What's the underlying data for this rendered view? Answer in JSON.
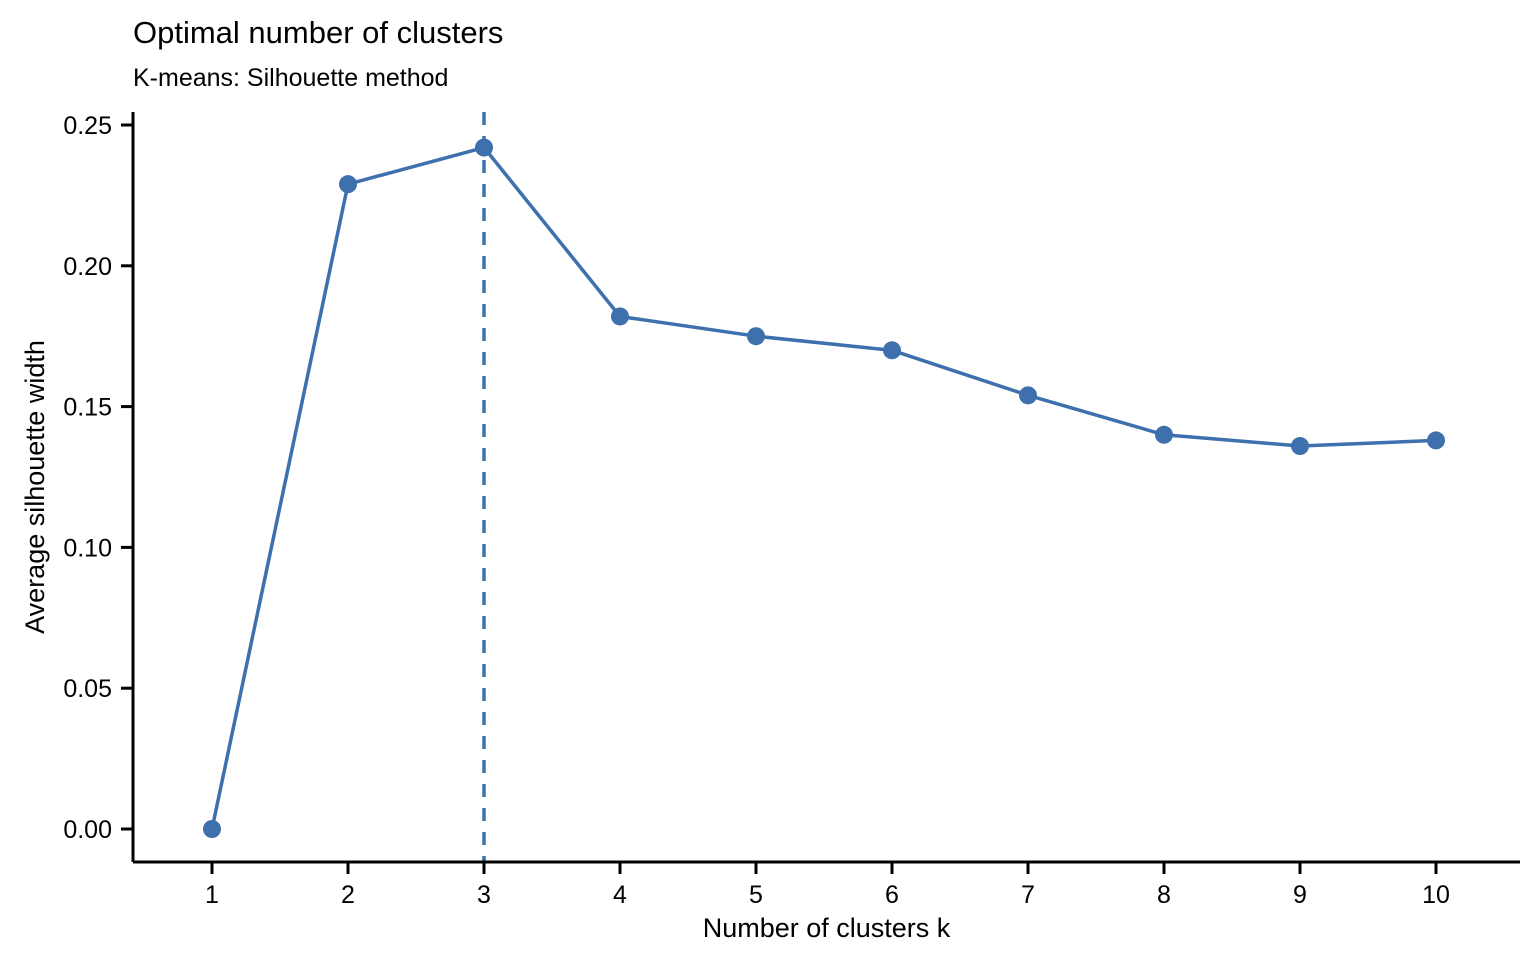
{
  "header": {
    "title": "Optimal number of clusters",
    "subtitle": "K-means: Silhouette method"
  },
  "chart_data": {
    "type": "line",
    "title": "Optimal number of clusters",
    "subtitle": "K-means: Silhouette method",
    "xlabel": "Number of clusters k",
    "ylabel": "Average silhouette width",
    "x": [
      1,
      2,
      3,
      4,
      5,
      6,
      7,
      8,
      9,
      10
    ],
    "values": [
      0.0,
      0.229,
      0.242,
      0.182,
      0.175,
      0.17,
      0.154,
      0.14,
      0.136,
      0.138
    ],
    "x_ticks": [
      "1",
      "2",
      "3",
      "4",
      "5",
      "6",
      "7",
      "8",
      "9",
      "10"
    ],
    "y_ticks": [
      "0.00",
      "0.05",
      "0.10",
      "0.15",
      "0.20",
      "0.25"
    ],
    "ylim": [
      0,
      0.25
    ],
    "grid": false,
    "legend": "none",
    "annotations": [
      {
        "type": "vline",
        "x": 3,
        "style": "dashed",
        "meaning": "optimal number of clusters"
      }
    ],
    "optimal_k": 3,
    "colors": {
      "series": "#3D70AC",
      "axis": "#000000",
      "text": "#000000",
      "background": "#ffffff"
    }
  }
}
